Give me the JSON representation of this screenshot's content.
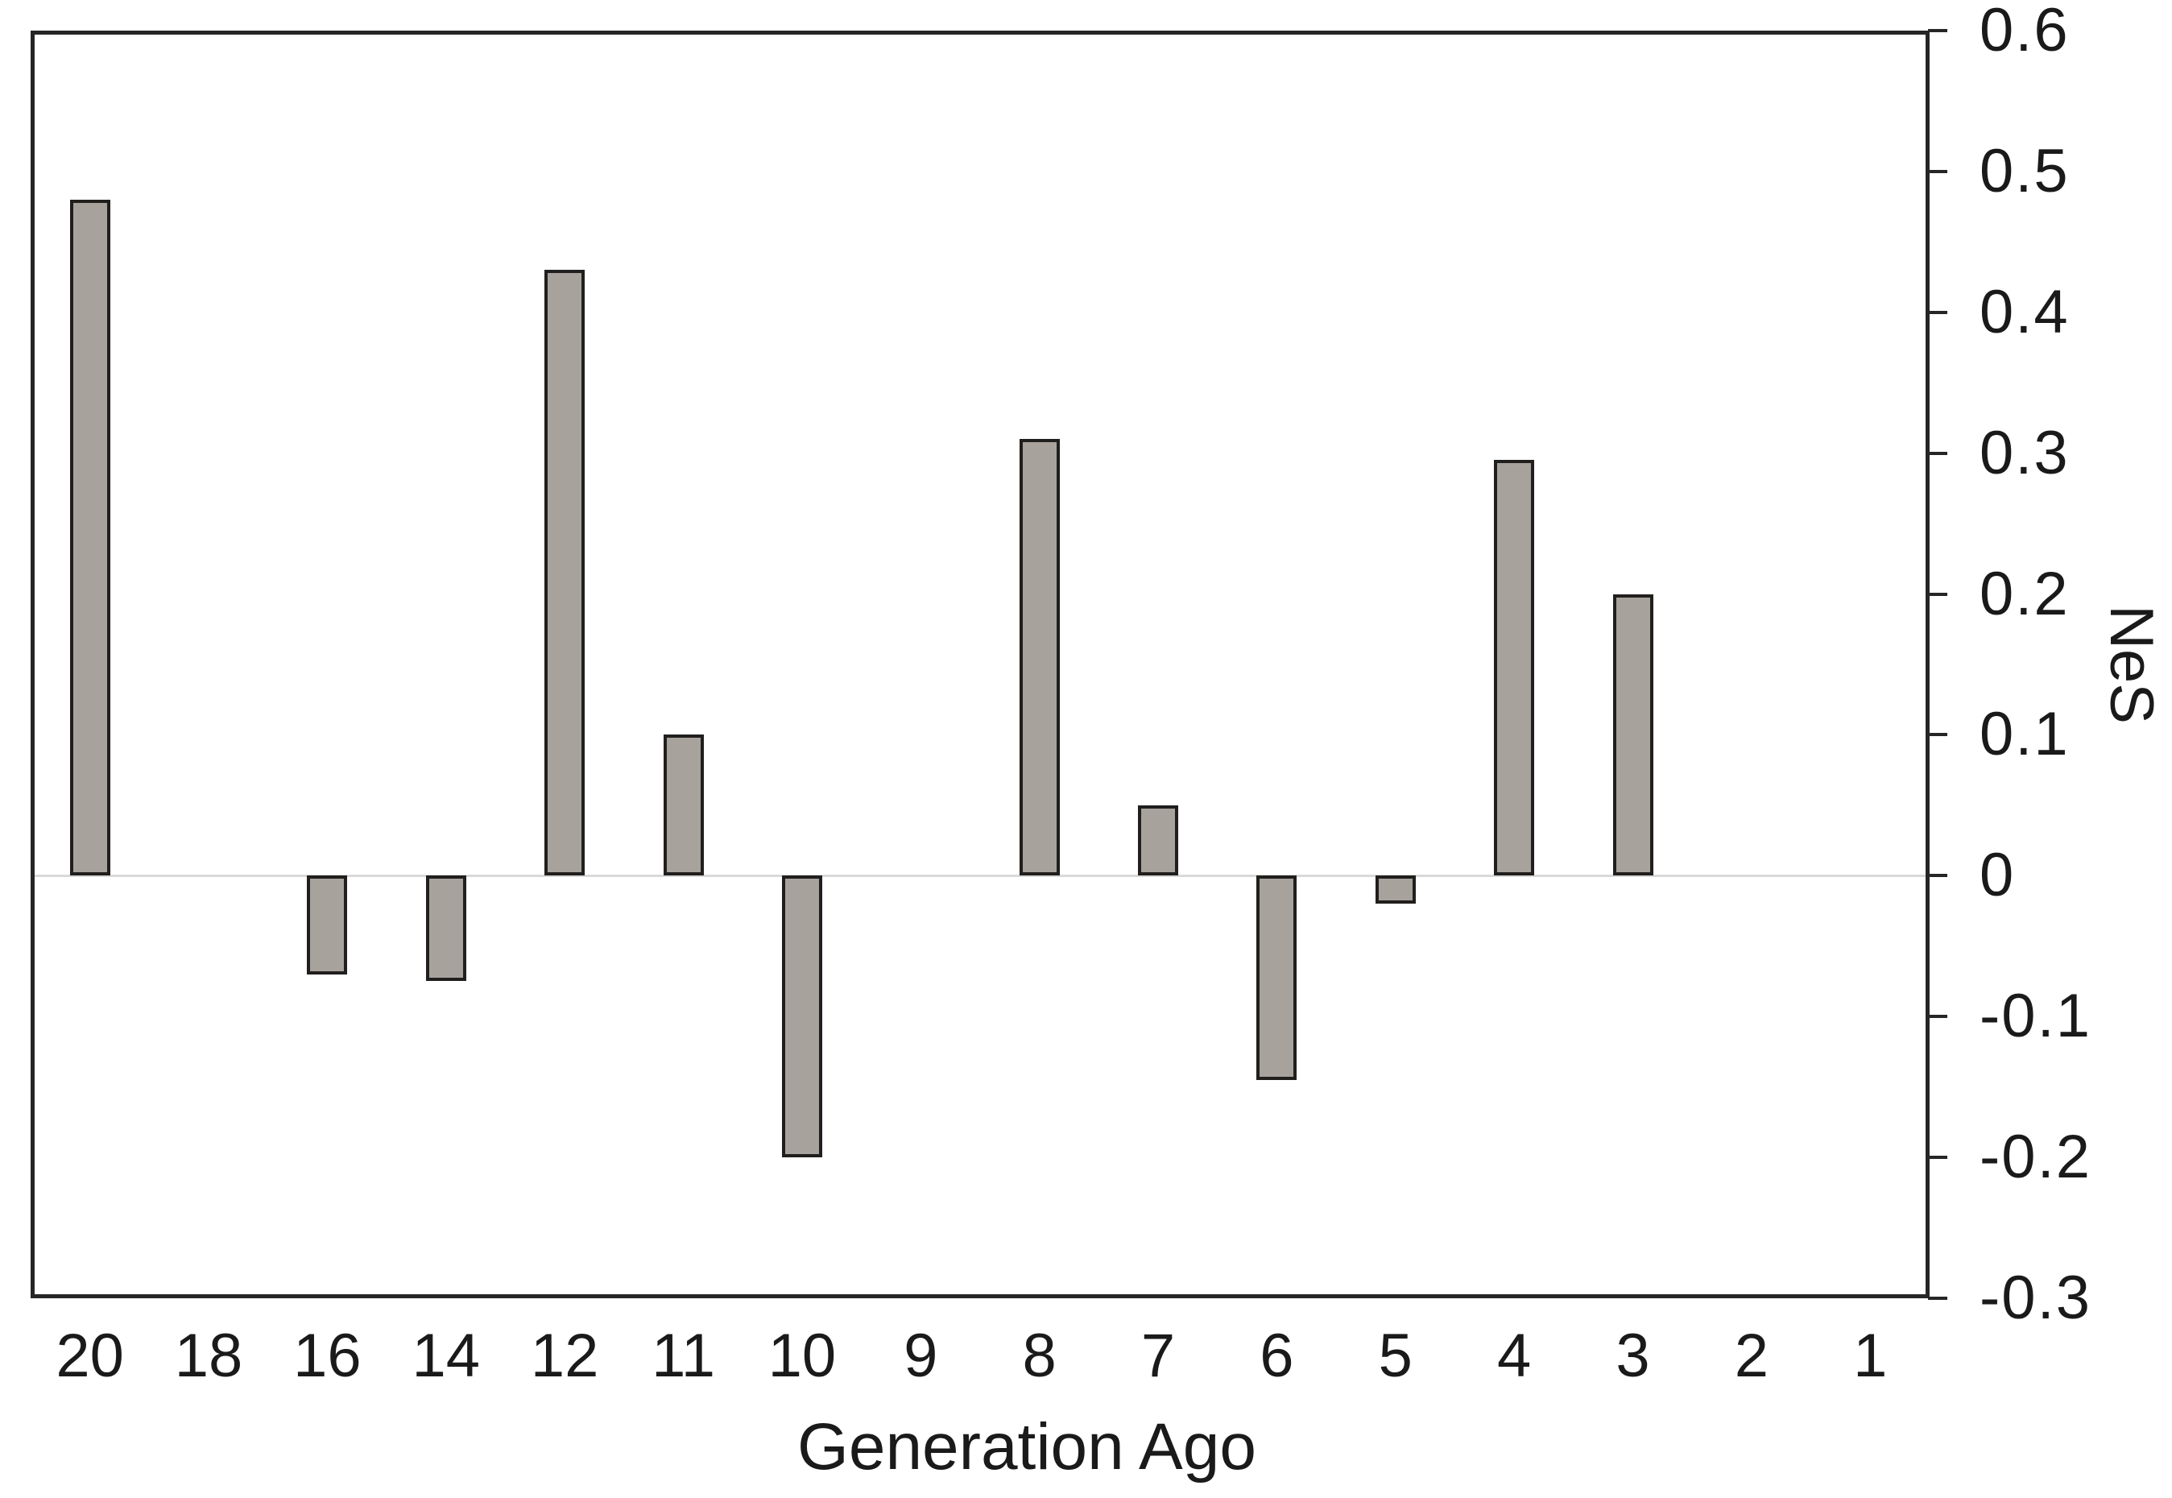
{
  "chart_data": {
    "type": "bar",
    "title": "",
    "xlabel": "Generation Ago",
    "ylabel": "NeS",
    "categories": [
      "20",
      "18",
      "16",
      "14",
      "12",
      "11",
      "10",
      "9",
      "8",
      "7",
      "6",
      "5",
      "4",
      "3",
      "2",
      "1"
    ],
    "values": [
      0.48,
      0,
      -0.07,
      -0.075,
      0.43,
      0.1,
      -0.2,
      0,
      0.31,
      0.05,
      -0.145,
      -0.02,
      0.295,
      0.2,
      0,
      0
    ],
    "ylim": [
      -0.3,
      0.6
    ],
    "yticks": [
      "0.6",
      "0.5",
      "0.4",
      "0.3",
      "0.2",
      "0.1",
      "0",
      "-0.1",
      "-0.2",
      "-0.3"
    ],
    "ytick_values": [
      0.6,
      0.5,
      0.4,
      0.3,
      0.2,
      0.1,
      0,
      -0.1,
      -0.2,
      -0.3
    ],
    "y_axis_side": "right",
    "legend": "none",
    "grid": "zero-line-only",
    "colors": {
      "background": "#ffffff",
      "bar_fill": "#a8a29d",
      "bar_border": "#211f1d",
      "frame": "#262626",
      "zero_line": "#d9d9d9",
      "text": "#1a1a1a"
    }
  }
}
